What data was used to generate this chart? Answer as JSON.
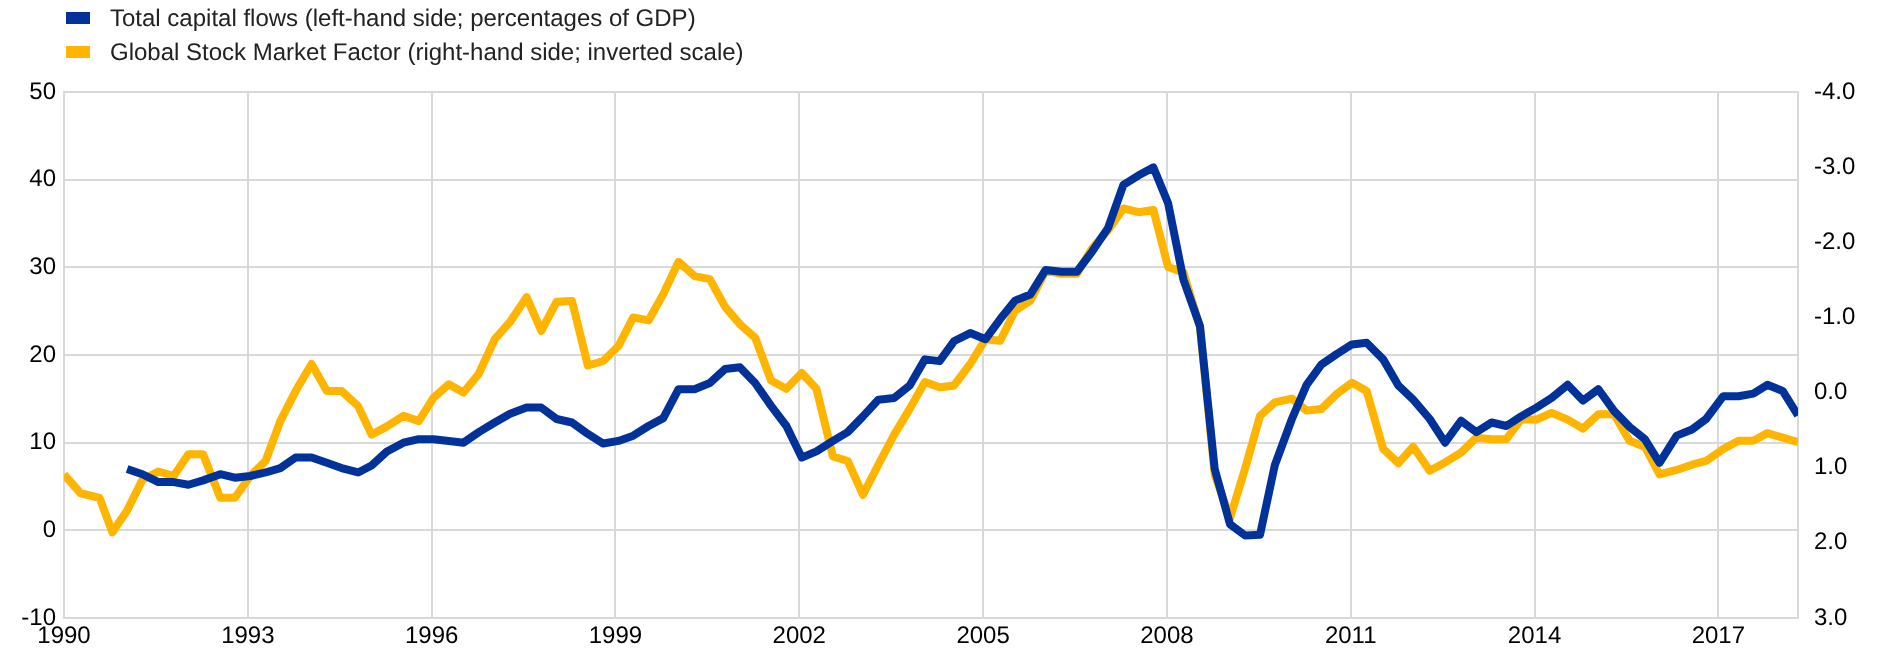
{
  "chart_data": {
    "type": "line",
    "legend": "top left",
    "grid": true,
    "marker": "none",
    "line_style": "solid",
    "xlim": [
      1990,
      2018.3
    ],
    "xticks": [
      1990,
      1993,
      1996,
      1999,
      2002,
      2005,
      2008,
      2011,
      2014,
      2017
    ],
    "ylim": [
      -10,
      50
    ],
    "yticks": [
      -10,
      0,
      10,
      20,
      30,
      40,
      50
    ],
    "y2lim": [
      3.0,
      -4.0
    ],
    "y2ticks": [
      {
        "value": -4,
        "label": "-4.0"
      },
      {
        "value": -3,
        "label": "-3.0"
      },
      {
        "value": -2,
        "label": "-2.0"
      },
      {
        "value": -1,
        "label": "-1.0"
      },
      {
        "value": 0,
        "label": "0.0"
      },
      {
        "value": 1,
        "label": "1.0"
      },
      {
        "value": 2,
        "label": "2.0"
      },
      {
        "value": 3,
        "label": "3.0"
      }
    ],
    "series": [
      {
        "name": "Total capital flows (left-hand side; percentages of GDP)",
        "color": "#003299",
        "x": [
          1991.03,
          1991.28,
          1991.54,
          1991.79,
          1992.03,
          1992.27,
          1992.55,
          1992.79,
          1993.04,
          1993.29,
          1993.53,
          1993.78,
          1994.04,
          1994.29,
          1994.53,
          1994.8,
          1995.02,
          1995.27,
          1995.54,
          1995.79,
          1996.03,
          1996.28,
          1996.52,
          1996.77,
          1997.03,
          1997.28,
          1997.55,
          1997.79,
          1998.04,
          1998.29,
          1998.55,
          1998.8,
          1999.05,
          1999.29,
          1999.54,
          1999.78,
          2000.03,
          2000.29,
          2000.54,
          2000.79,
          2001.03,
          2001.28,
          2001.54,
          2001.79,
          2002.04,
          2002.28,
          2002.55,
          2002.79,
          2003.04,
          2003.29,
          2003.55,
          2003.8,
          2004.05,
          2004.29,
          2004.53,
          2004.79,
          2005.04,
          2005.28,
          2005.52,
          2005.77,
          2006.02,
          2006.28,
          2006.53,
          2006.78,
          2007.04,
          2007.29,
          2007.54,
          2007.78,
          2008.02,
          2008.27,
          2008.54,
          2008.78,
          2009.03,
          2009.28,
          2009.52,
          2009.76,
          2010.04,
          2010.28,
          2010.52,
          2010.77,
          2011.02,
          2011.26,
          2011.53,
          2011.78,
          2012.02,
          2012.29,
          2012.54,
          2012.8,
          2013.05,
          2013.3,
          2013.54,
          2013.78,
          2014.03,
          2014.28,
          2014.54,
          2014.79,
          2015.04,
          2015.3,
          2015.55,
          2015.8,
          2016.04,
          2016.32,
          2016.57,
          2016.8,
          2017.08,
          2017.33,
          2017.57,
          2017.8,
          2018.05,
          2018.3
        ],
        "values": [
          7.0,
          6.4,
          5.5,
          5.5,
          5.2,
          5.7,
          6.4,
          6.0,
          6.2,
          6.6,
          7.1,
          8.3,
          8.3,
          7.7,
          7.1,
          6.6,
          7.4,
          9.0,
          10.0,
          10.4,
          10.4,
          10.2,
          10.0,
          11.2,
          12.3,
          13.3,
          14.0,
          14.0,
          12.7,
          12.3,
          11.0,
          9.9,
          10.2,
          10.8,
          11.9,
          12.8,
          16.1,
          16.1,
          16.8,
          18.4,
          18.6,
          16.8,
          14.2,
          11.9,
          8.3,
          9.0,
          10.2,
          11.2,
          13.0,
          14.9,
          15.1,
          16.5,
          19.5,
          19.3,
          21.6,
          22.5,
          21.8,
          24.1,
          26.2,
          26.9,
          29.7,
          29.5,
          29.5,
          31.8,
          34.5,
          39.4,
          40.5,
          41.4,
          37.3,
          28.6,
          23.3,
          7.0,
          0.7,
          -0.6,
          -0.5,
          7.4,
          12.7,
          16.6,
          18.9,
          20.1,
          21.2,
          21.4,
          19.5,
          16.5,
          14.9,
          12.7,
          10.0,
          12.5,
          11.2,
          12.3,
          11.9,
          13.0,
          14.0,
          15.1,
          16.6,
          14.8,
          16.1,
          13.6,
          11.8,
          10.4,
          7.7,
          10.8,
          11.5,
          12.7,
          15.3,
          15.3,
          15.6,
          16.6,
          15.9,
          13.1
        ]
      },
      {
        "name": "Global Stock Market Factor (right-hand side; inverted scale)",
        "color": "#ffb400",
        "axis": "y2",
        "x": [
          1990.0,
          1990.27,
          1990.58,
          1990.79,
          1991.03,
          1991.28,
          1991.54,
          1991.79,
          1992.03,
          1992.27,
          1992.55,
          1992.79,
          1993.04,
          1993.29,
          1993.53,
          1993.78,
          1994.04,
          1994.29,
          1994.53,
          1994.8,
          1995.02,
          1995.27,
          1995.54,
          1995.79,
          1996.03,
          1996.28,
          1996.52,
          1996.77,
          1997.03,
          1997.28,
          1997.55,
          1997.79,
          1998.04,
          1998.29,
          1998.55,
          1998.8,
          1999.05,
          1999.29,
          1999.54,
          1999.78,
          2000.03,
          2000.29,
          2000.54,
          2000.79,
          2001.03,
          2001.28,
          2001.54,
          2001.79,
          2002.04,
          2002.28,
          2002.55,
          2002.79,
          2003.04,
          2003.29,
          2003.55,
          2003.8,
          2004.05,
          2004.29,
          2004.52,
          2004.79,
          2005.04,
          2005.28,
          2005.52,
          2005.77,
          2006.02,
          2006.28,
          2006.53,
          2006.78,
          2007.04,
          2007.29,
          2007.54,
          2007.78,
          2008.02,
          2008.27,
          2008.54,
          2008.78,
          2009.03,
          2009.28,
          2009.52,
          2009.76,
          2010.04,
          2010.28,
          2010.52,
          2010.77,
          2011.02,
          2011.26,
          2011.53,
          2011.78,
          2012.02,
          2012.29,
          2012.54,
          2012.8,
          2013.05,
          2013.3,
          2013.54,
          2013.78,
          2014.03,
          2014.28,
          2014.54,
          2014.79,
          2015.04,
          2015.3,
          2015.55,
          2015.8,
          2016.04,
          2016.32,
          2016.57,
          2016.8,
          2017.08,
          2017.33,
          2017.57,
          2017.8,
          2018.05,
          2018.3
        ],
        "values": [
          1.09,
          1.34,
          1.4,
          1.86,
          1.57,
          1.16,
          1.05,
          1.11,
          0.82,
          0.82,
          1.4,
          1.4,
          1.11,
          0.91,
          0.38,
          -0.02,
          -0.38,
          -0.02,
          -0.02,
          0.18,
          0.56,
          0.45,
          0.31,
          0.38,
          0.07,
          -0.11,
          0.0,
          -0.25,
          -0.71,
          -0.94,
          -1.27,
          -0.82,
          -1.21,
          -1.22,
          -0.36,
          -0.42,
          -0.62,
          -1.0,
          -0.96,
          -1.31,
          -1.74,
          -1.55,
          -1.51,
          -1.14,
          -0.91,
          -0.73,
          -0.16,
          -0.05,
          -0.26,
          -0.05,
          0.85,
          0.91,
          1.36,
          0.96,
          0.56,
          0.22,
          -0.14,
          -0.07,
          -0.09,
          -0.38,
          -0.71,
          -0.69,
          -1.09,
          -1.22,
          -1.62,
          -1.58,
          -1.58,
          -1.92,
          -2.16,
          -2.45,
          -2.4,
          -2.43,
          -1.67,
          -1.6,
          -0.87,
          1.09,
          1.67,
          1.0,
          0.31,
          0.13,
          0.08,
          0.24,
          0.22,
          0.02,
          -0.13,
          -0.02,
          0.75,
          0.94,
          0.72,
          1.04,
          0.93,
          0.8,
          0.6,
          0.62,
          0.62,
          0.36,
          0.36,
          0.27,
          0.36,
          0.48,
          0.29,
          0.29,
          0.64,
          0.72,
          1.09,
          1.03,
          0.96,
          0.91,
          0.75,
          0.64,
          0.64,
          0.54,
          0.6,
          0.66
        ]
      }
    ]
  }
}
